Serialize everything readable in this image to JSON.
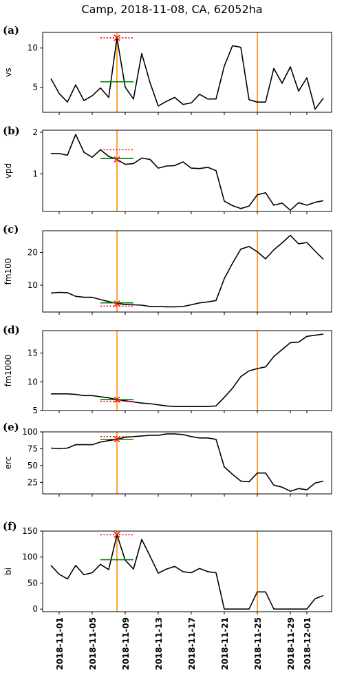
{
  "title": "Camp, 2018-11-08, CA, 62052ha",
  "colors": {
    "line": "#000000",
    "vline": "#ff8c00",
    "mean": "#008000",
    "dotted": "#ff0000",
    "marker": "#ff0000"
  },
  "chart_data": {
    "type": "line",
    "x": [
      "2018-10-31",
      "2018-11-01",
      "2018-11-02",
      "2018-11-03",
      "2018-11-04",
      "2018-11-05",
      "2018-11-06",
      "2018-11-07",
      "2018-11-08",
      "2018-11-09",
      "2018-11-10",
      "2018-11-11",
      "2018-11-12",
      "2018-11-13",
      "2018-11-14",
      "2018-11-15",
      "2018-11-16",
      "2018-11-17",
      "2018-11-18",
      "2018-11-19",
      "2018-11-20",
      "2018-11-21",
      "2018-11-22",
      "2018-11-23",
      "2018-11-24",
      "2018-11-25",
      "2018-11-26",
      "2018-11-27",
      "2018-11-28",
      "2018-11-29",
      "2018-11-30",
      "2018-12-01",
      "2018-12-02",
      "2018-12-03"
    ],
    "xticks": [
      "2018-11-01",
      "2018-11-05",
      "2018-11-09",
      "2018-11-13",
      "2018-11-17",
      "2018-11-21",
      "2018-11-25",
      "2018-11-29",
      "2018-12-01"
    ],
    "xlim": [
      "2018-10-30",
      "2018-12-04"
    ],
    "vlines": [
      "2018-11-08",
      "2018-11-25"
    ],
    "event_date": "2018-11-08",
    "mean_segment": [
      "2018-11-06",
      "2018-11-10"
    ],
    "panels": [
      {
        "label": "(a)",
        "ylabel": "vs",
        "ylim": [
          1.8,
          12.0
        ],
        "yticks": [
          5,
          10
        ],
        "values": [
          6.1,
          4.2,
          3.1,
          5.3,
          3.3,
          3.9,
          4.9,
          3.7,
          11.3,
          5.0,
          3.5,
          9.3,
          5.6,
          2.6,
          3.2,
          3.7,
          2.8,
          3.0,
          4.1,
          3.5,
          3.5,
          7.7,
          10.3,
          10.1,
          3.4,
          3.1,
          3.1,
          7.4,
          5.5,
          7.6,
          4.5,
          6.2,
          2.2,
          3.6
        ],
        "mean": 5.7,
        "ref": 11.3
      },
      {
        "label": "(b)",
        "ylabel": "vpd",
        "ylim": [
          0.1,
          2.05
        ],
        "yticks": [
          1,
          2
        ],
        "values": [
          1.49,
          1.49,
          1.45,
          1.95,
          1.52,
          1.4,
          1.58,
          1.42,
          1.35,
          1.23,
          1.25,
          1.38,
          1.35,
          1.14,
          1.19,
          1.2,
          1.29,
          1.14,
          1.13,
          1.16,
          1.08,
          0.35,
          0.24,
          0.17,
          0.23,
          0.5,
          0.55,
          0.25,
          0.3,
          0.13,
          0.31,
          0.25,
          0.32,
          0.36
        ],
        "mean": 1.37,
        "ref": 1.58
      },
      {
        "label": "(c)",
        "ylabel": "fm100",
        "ylim": [
          1.8,
          26.6
        ],
        "yticks": [
          10,
          20
        ],
        "values": [
          7.6,
          7.8,
          7.7,
          6.6,
          6.3,
          6.3,
          5.6,
          5.0,
          4.4,
          4.1,
          4.0,
          3.9,
          3.5,
          3.5,
          3.4,
          3.4,
          3.5,
          4.0,
          4.6,
          4.9,
          5.3,
          12.0,
          16.7,
          21.0,
          21.8,
          20.2,
          18.0,
          20.8,
          22.9,
          25.2,
          22.6,
          23.0,
          20.4,
          17.9
        ],
        "mean": 4.6,
        "ref": 3.6
      },
      {
        "label": "(d)",
        "ylabel": "fm1000",
        "ylim": [
          5.0,
          18.9
        ],
        "yticks": [
          5,
          10,
          15
        ],
        "values": [
          7.9,
          7.9,
          7.9,
          7.8,
          7.6,
          7.6,
          7.4,
          7.2,
          6.9,
          6.7,
          6.5,
          6.3,
          6.2,
          6.0,
          5.8,
          5.7,
          5.7,
          5.7,
          5.7,
          5.7,
          5.8,
          7.3,
          8.9,
          10.9,
          11.9,
          12.3,
          12.6,
          14.4,
          15.6,
          16.8,
          16.9,
          17.9,
          18.1,
          18.3
        ],
        "mean": 6.9,
        "ref": 6.6
      },
      {
        "label": "(e)",
        "ylabel": "erc",
        "ylim": [
          8,
          100
        ],
        "yticks": [
          25,
          50,
          75,
          100
        ],
        "values": [
          76,
          75,
          76,
          81,
          81,
          81,
          85,
          87,
          89,
          92,
          93,
          94,
          95,
          95,
          97,
          97,
          96,
          93,
          91,
          91,
          89,
          48,
          37,
          27,
          26,
          39,
          39,
          21,
          18,
          12,
          16,
          14,
          24,
          27
        ],
        "mean": 89,
        "ref": 93
      },
      {
        "label": "(f)",
        "ylabel": "bi",
        "ylim": [
          -5,
          150
        ],
        "yticks": [
          0,
          50,
          100,
          150
        ],
        "values": [
          84,
          67,
          58,
          84,
          66,
          70,
          86,
          76,
          143,
          94,
          77,
          134,
          102,
          69,
          77,
          82,
          72,
          70,
          78,
          72,
          70,
          0,
          0,
          0,
          0,
          33,
          33,
          0,
          0,
          0,
          0,
          0,
          20,
          26
        ],
        "mean": 95,
        "ref": 143
      }
    ]
  }
}
